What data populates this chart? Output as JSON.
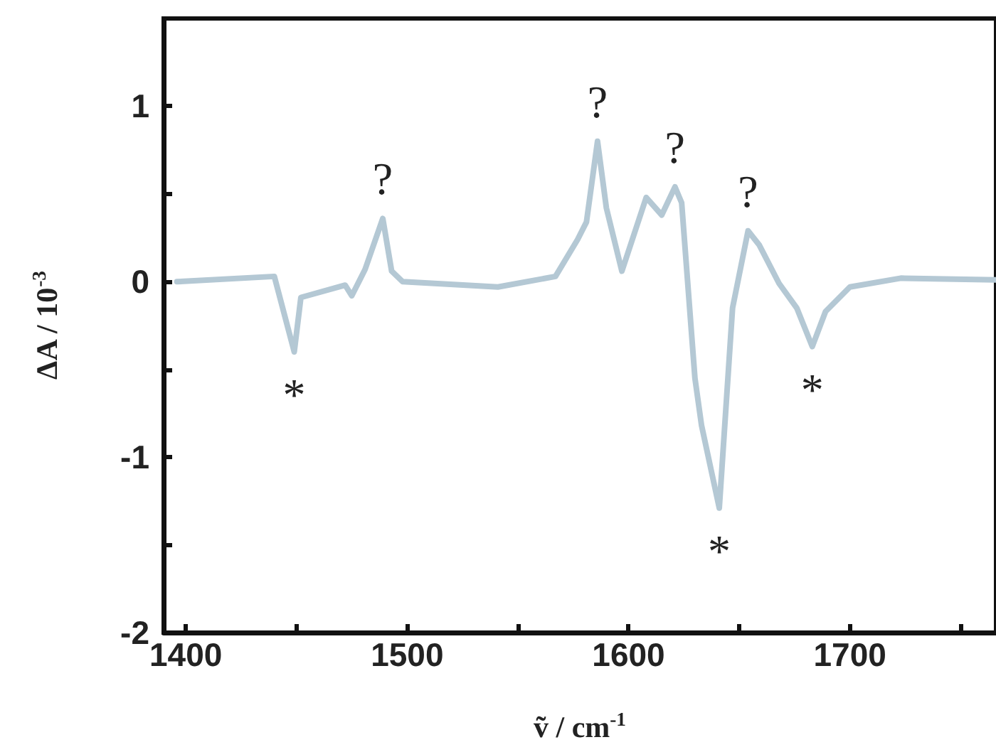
{
  "chart_data": {
    "type": "line",
    "xlabel": "ṽ / cm$^{-1}$",
    "ylabel": "ΔA / 10$^{-3}$",
    "x": [
      1396,
      1440,
      1449,
      1452,
      1472,
      1475,
      1481,
      1489,
      1493,
      1498,
      1541,
      1567,
      1577,
      1581,
      1586,
      1590,
      1597,
      1608,
      1615,
      1621,
      1624,
      1630,
      1633,
      1641,
      1647,
      1654,
      1659,
      1668,
      1676,
      1683,
      1689,
      1700,
      1723,
      1766
    ],
    "series": [
      {
        "color": "#b4c8d4",
        "values": [
          0,
          0.03,
          -0.4,
          -0.09,
          -0.02,
          -0.08,
          0.07,
          0.36,
          0.06,
          0,
          -0.03,
          0.03,
          0.24,
          0.34,
          0.8,
          0.42,
          0.06,
          0.48,
          0.38,
          0.54,
          0.45,
          -0.55,
          -0.82,
          -1.29,
          -0.15,
          0.29,
          0.21,
          -0.01,
          -0.15,
          -0.37,
          -0.17,
          -0.03,
          0.02,
          0.01
        ]
      }
    ],
    "xlim": [
      1390,
      1766
    ],
    "xticks": [
      1400,
      {
        "value": 1450,
        "label": null
      },
      1500,
      {
        "value": 1550,
        "label": null
      },
      1600,
      {
        "value": 1650,
        "label": null
      },
      1700,
      {
        "value": 1750,
        "label": null
      }
    ],
    "ylim": [
      -2,
      1.5
    ],
    "yticks": [
      -2,
      {
        "value": -1.5,
        "label": null
      },
      -1,
      {
        "value": -0.5,
        "label": null
      },
      0,
      {
        "value": 0.5,
        "label": null
      },
      1
    ],
    "grid": false,
    "marker": "none",
    "line_style": "solid",
    "annotations": [
      {
        "text": "*",
        "x": 1449,
        "y": -0.4
      },
      {
        "text": "?",
        "x": 1489,
        "y": 0.36
      },
      {
        "text": "?",
        "x": 1586,
        "y": 0.8
      },
      {
        "text": "?",
        "x": 1621,
        "y": 0.54
      },
      {
        "text": "*",
        "x": 1641,
        "y": -1.29
      },
      {
        "text": "?",
        "x": 1654,
        "y": 0.29
      },
      {
        "text": "*",
        "x": 1683,
        "y": -0.37
      }
    ]
  }
}
